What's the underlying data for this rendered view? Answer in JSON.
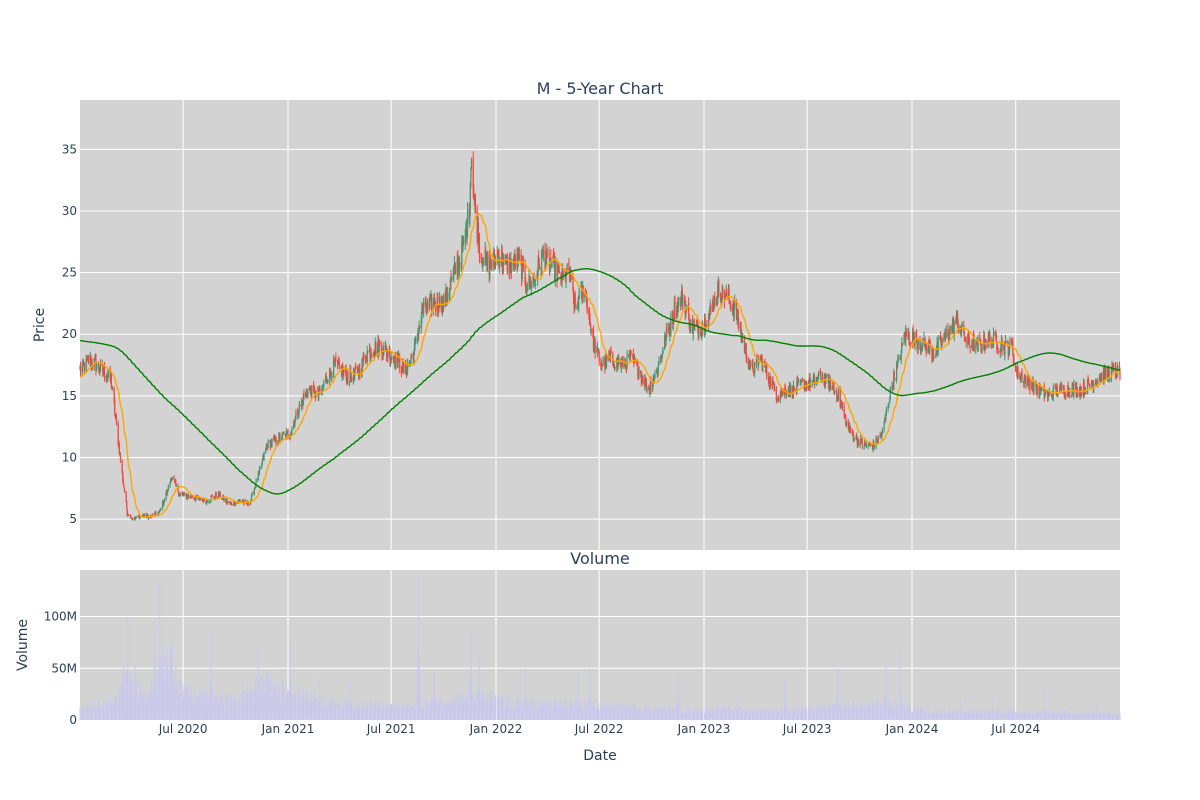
{
  "chart_data": [
    {
      "type": "candlestick",
      "title": "M - 5-Year Chart",
      "ylabel": "Price",
      "xlabel": "",
      "x_range": [
        "2020-01-02",
        "2024-12-31"
      ],
      "ylim": [
        2.5,
        39.0
      ],
      "y_ticks": [
        5,
        10,
        15,
        20,
        25,
        30,
        35
      ],
      "x_ticks": [
        "2020-07-01",
        "2021-01-01",
        "2021-07-01",
        "2022-01-01",
        "2022-07-01",
        "2023-01-01",
        "2023-07-01",
        "2024-01-01",
        "2024-07-01"
      ],
      "grid": true,
      "legend": "none",
      "colors": {
        "up": "#3d9970",
        "down": "#ff4136",
        "ma_short": "#ffa500",
        "ma_long": "#008000",
        "plot_bg": "#d3d3d3"
      },
      "close_anchors": [
        [
          "2020-01-02",
          17.0
        ],
        [
          "2020-01-20",
          18.0
        ],
        [
          "2020-02-10",
          17.0
        ],
        [
          "2020-02-25",
          16.5
        ],
        [
          "2020-03-05",
          13.0
        ],
        [
          "2020-03-15",
          9.0
        ],
        [
          "2020-03-25",
          5.5
        ],
        [
          "2020-04-05",
          5.0
        ],
        [
          "2020-04-20",
          5.3
        ],
        [
          "2020-05-05",
          5.2
        ],
        [
          "2020-05-20",
          5.5
        ],
        [
          "2020-06-05",
          7.5
        ],
        [
          "2020-06-10",
          8.5
        ],
        [
          "2020-06-25",
          7.0
        ],
        [
          "2020-07-15",
          6.8
        ],
        [
          "2020-08-10",
          6.5
        ],
        [
          "2020-09-01",
          7.0
        ],
        [
          "2020-09-20",
          6.2
        ],
        [
          "2020-10-10",
          6.5
        ],
        [
          "2020-10-25",
          6.2
        ],
        [
          "2020-11-10",
          8.5
        ],
        [
          "2020-11-25",
          11.0
        ],
        [
          "2020-12-15",
          11.5
        ],
        [
          "2021-01-05",
          12.0
        ],
        [
          "2021-01-20",
          14.0
        ],
        [
          "2021-02-05",
          15.5
        ],
        [
          "2021-02-25",
          15.0
        ],
        [
          "2021-03-10",
          16.5
        ],
        [
          "2021-03-25",
          17.5
        ],
        [
          "2021-04-15",
          16.5
        ],
        [
          "2021-05-05",
          17.0
        ],
        [
          "2021-05-20",
          18.5
        ],
        [
          "2021-06-10",
          19.0
        ],
        [
          "2021-06-25",
          18.5
        ],
        [
          "2021-07-10",
          18.0
        ],
        [
          "2021-07-25",
          17.0
        ],
        [
          "2021-08-10",
          18.5
        ],
        [
          "2021-08-25",
          22.0
        ],
        [
          "2021-09-15",
          22.5
        ],
        [
          "2021-10-01",
          22.5
        ],
        [
          "2021-10-20",
          25.0
        ],
        [
          "2021-11-05",
          27.0
        ],
        [
          "2021-11-15",
          30.0
        ],
        [
          "2021-11-19",
          35.0
        ],
        [
          "2021-11-23",
          31.0
        ],
        [
          "2021-12-05",
          26.5
        ],
        [
          "2021-12-20",
          25.5
        ],
        [
          "2022-01-05",
          26.5
        ],
        [
          "2022-01-20",
          25.5
        ],
        [
          "2022-02-10",
          26.0
        ],
        [
          "2022-02-25",
          24.0
        ],
        [
          "2022-03-10",
          24.5
        ],
        [
          "2022-03-25",
          26.5
        ],
        [
          "2022-04-10",
          25.5
        ],
        [
          "2022-04-25",
          24.5
        ],
        [
          "2022-05-10",
          25.0
        ],
        [
          "2022-05-20",
          22.0
        ],
        [
          "2022-06-05",
          24.0
        ],
        [
          "2022-06-20",
          19.5
        ],
        [
          "2022-07-05",
          17.5
        ],
        [
          "2022-07-20",
          18.0
        ],
        [
          "2022-08-10",
          17.5
        ],
        [
          "2022-08-25",
          18.0
        ],
        [
          "2022-09-10",
          17.0
        ],
        [
          "2022-09-25",
          15.5
        ],
        [
          "2022-10-10",
          17.0
        ],
        [
          "2022-10-25",
          19.5
        ],
        [
          "2022-11-10",
          22.0
        ],
        [
          "2022-11-25",
          23.0
        ],
        [
          "2022-12-10",
          20.5
        ],
        [
          "2022-12-25",
          20.5
        ],
        [
          "2023-01-10",
          21.5
        ],
        [
          "2023-01-25",
          23.5
        ],
        [
          "2023-02-10",
          23.0
        ],
        [
          "2023-02-25",
          22.0
        ],
        [
          "2023-03-10",
          19.5
        ],
        [
          "2023-03-25",
          17.0
        ],
        [
          "2023-04-10",
          18.0
        ],
        [
          "2023-04-25",
          16.5
        ],
        [
          "2023-05-10",
          15.0
        ],
        [
          "2023-05-25",
          15.5
        ],
        [
          "2023-06-10",
          15.5
        ],
        [
          "2023-06-25",
          16.0
        ],
        [
          "2023-07-10",
          16.0
        ],
        [
          "2023-07-25",
          16.5
        ],
        [
          "2023-08-10",
          16.0
        ],
        [
          "2023-08-25",
          15.0
        ],
        [
          "2023-09-10",
          12.5
        ],
        [
          "2023-09-25",
          11.5
        ],
        [
          "2023-10-10",
          11.0
        ],
        [
          "2023-10-25",
          11.0
        ],
        [
          "2023-11-10",
          12.0
        ],
        [
          "2023-11-25",
          15.5
        ],
        [
          "2023-12-10",
          18.0
        ],
        [
          "2023-12-20",
          20.0
        ],
        [
          "2024-01-10",
          19.5
        ],
        [
          "2024-01-25",
          19.0
        ],
        [
          "2024-02-10",
          18.5
        ],
        [
          "2024-02-25",
          19.5
        ],
        [
          "2024-03-10",
          20.5
        ],
        [
          "2024-03-20",
          21.0
        ],
        [
          "2024-04-05",
          19.5
        ],
        [
          "2024-04-25",
          19.0
        ],
        [
          "2024-05-10",
          19.5
        ],
        [
          "2024-05-25",
          19.5
        ],
        [
          "2024-06-10",
          19.0
        ],
        [
          "2024-06-25",
          19.0
        ],
        [
          "2024-07-01",
          17.0
        ],
        [
          "2024-07-25",
          16.0
        ],
        [
          "2024-08-10",
          15.5
        ],
        [
          "2024-08-25",
          15.0
        ],
        [
          "2024-09-15",
          15.5
        ],
        [
          "2024-10-10",
          15.5
        ],
        [
          "2024-10-25",
          15.5
        ],
        [
          "2024-11-10",
          16.0
        ],
        [
          "2024-11-25",
          16.5
        ],
        [
          "2024-12-15",
          17.0
        ],
        [
          "2024-12-31",
          16.8
        ]
      ],
      "series": [
        {
          "kind": "candles"
        },
        {
          "kind": "moving_average",
          "window": 20
        },
        {
          "kind": "moving_average",
          "window": 200
        }
      ]
    },
    {
      "type": "bar",
      "title": "Volume",
      "xlabel": "Date",
      "ylabel": "Volume",
      "ylim": [
        0,
        145000000
      ],
      "y_ticks": [
        0,
        50000000,
        100000000
      ],
      "y_tick_labels": [
        "0",
        "50M",
        "100M"
      ],
      "x_ticks": [
        "2020-07-01",
        "2021-01-01",
        "2021-07-01",
        "2022-01-01",
        "2022-07-01",
        "2023-01-01",
        "2023-07-01",
        "2024-01-01",
        "2024-07-01"
      ],
      "x_tick_labels": [
        "Jul 2020",
        "Jan 2021",
        "Jul 2021",
        "Jan 2022",
        "Jul 2022",
        "Jan 2023",
        "Jul 2023",
        "Jan 2024",
        "Jul 2024"
      ],
      "grid": true,
      "colors": {
        "bar": "#c8c8ee",
        "plot_bg": "#d3d3d3"
      },
      "baseline_anchors": [
        [
          "2020-01-02",
          12000000
        ],
        [
          "2020-03-01",
          15000000
        ],
        [
          "2020-03-20",
          35000000
        ],
        [
          "2020-05-01",
          28000000
        ],
        [
          "2020-06-10",
          60000000
        ],
        [
          "2020-07-01",
          25000000
        ],
        [
          "2020-10-01",
          18000000
        ],
        [
          "2020-11-20",
          35000000
        ],
        [
          "2021-01-15",
          25000000
        ],
        [
          "2021-04-01",
          15000000
        ],
        [
          "2021-08-01",
          12000000
        ],
        [
          "2021-11-15",
          22000000
        ],
        [
          "2022-02-01",
          16000000
        ],
        [
          "2022-06-01",
          14000000
        ],
        [
          "2022-11-01",
          10000000
        ],
        [
          "2023-06-01",
          9000000
        ],
        [
          "2023-11-20",
          15000000
        ],
        [
          "2024-02-01",
          8000000
        ],
        [
          "2024-12-31",
          6000000
        ]
      ],
      "spikes": [
        [
          "2020-03-18",
          55000000
        ],
        [
          "2020-03-26",
          100000000
        ],
        [
          "2020-04-08",
          52000000
        ],
        [
          "2020-05-13",
          88000000
        ],
        [
          "2020-05-21",
          132000000
        ],
        [
          "2020-05-27",
          70000000
        ],
        [
          "2020-08-19",
          85000000
        ],
        [
          "2020-11-09",
          72000000
        ],
        [
          "2021-01-05",
          75000000
        ],
        [
          "2021-02-24",
          40000000
        ],
        [
          "2021-04-20",
          36000000
        ],
        [
          "2021-08-18",
          140000000
        ],
        [
          "2021-09-15",
          46000000
        ],
        [
          "2021-11-18",
          90000000
        ],
        [
          "2021-12-02",
          65000000
        ],
        [
          "2022-02-22",
          50000000
        ],
        [
          "2022-05-26",
          46000000
        ],
        [
          "2022-06-15",
          50000000
        ],
        [
          "2022-11-17",
          46000000
        ],
        [
          "2023-03-02",
          27000000
        ],
        [
          "2023-05-23",
          38000000
        ],
        [
          "2023-08-23",
          50000000
        ],
        [
          "2023-11-16",
          52000000
        ],
        [
          "2023-12-11",
          65000000
        ],
        [
          "2024-03-26",
          20000000
        ],
        [
          "2024-05-21",
          22000000
        ],
        [
          "2024-08-21",
          26000000
        ],
        [
          "2024-11-20",
          18000000
        ]
      ]
    }
  ]
}
